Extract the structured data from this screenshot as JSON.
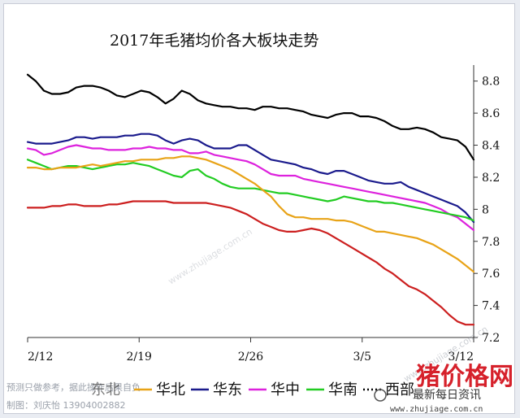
{
  "chart_data": {
    "type": "line",
    "title": "2017年毛猪均价各大板块走势",
    "x_ticks": [
      "2/12",
      "2/19",
      "2/26",
      "3/5",
      "3/12"
    ],
    "y_ticks": [
      "7.2",
      "7.4",
      "7.6",
      "7.8",
      "8",
      "8.2",
      "8.4",
      "8.6",
      "8.8"
    ],
    "ylim": [
      7.2,
      8.9
    ],
    "y_axis_side": "right",
    "legend_position": "bottom",
    "legend_prefix_visible": "东北",
    "series": [
      {
        "name": "西部",
        "color": "#000000",
        "values": [
          8.84,
          8.8,
          8.74,
          8.72,
          8.72,
          8.73,
          8.76,
          8.77,
          8.77,
          8.76,
          8.74,
          8.71,
          8.7,
          8.72,
          8.74,
          8.73,
          8.7,
          8.66,
          8.69,
          8.74,
          8.72,
          8.68,
          8.66,
          8.65,
          8.64,
          8.64,
          8.63,
          8.63,
          8.62,
          8.64,
          8.64,
          8.63,
          8.63,
          8.62,
          8.61,
          8.59,
          8.58,
          8.57,
          8.59,
          8.6,
          8.6,
          8.58,
          8.58,
          8.57,
          8.55,
          8.52,
          8.5,
          8.5,
          8.51,
          8.5,
          8.48,
          8.45,
          8.44,
          8.43,
          8.39,
          8.31
        ]
      },
      {
        "name": "华东",
        "color": "#1a1a8c",
        "values": [
          8.42,
          8.41,
          8.41,
          8.41,
          8.42,
          8.43,
          8.45,
          8.45,
          8.44,
          8.45,
          8.45,
          8.45,
          8.46,
          8.46,
          8.47,
          8.47,
          8.46,
          8.43,
          8.41,
          8.43,
          8.44,
          8.43,
          8.4,
          8.38,
          8.38,
          8.38,
          8.4,
          8.4,
          8.37,
          8.34,
          8.31,
          8.3,
          8.29,
          8.28,
          8.26,
          8.25,
          8.23,
          8.22,
          8.24,
          8.24,
          8.22,
          8.2,
          8.18,
          8.17,
          8.16,
          8.16,
          8.17,
          8.14,
          8.12,
          8.1,
          8.08,
          8.06,
          8.04,
          8.02,
          7.98,
          7.92
        ]
      },
      {
        "name": "华中",
        "color": "#dd22dd",
        "values": [
          8.38,
          8.37,
          8.34,
          8.35,
          8.37,
          8.39,
          8.4,
          8.39,
          8.38,
          8.38,
          8.37,
          8.37,
          8.37,
          8.38,
          8.38,
          8.39,
          8.38,
          8.38,
          8.37,
          8.37,
          8.35,
          8.35,
          8.36,
          8.34,
          8.33,
          8.32,
          8.31,
          8.3,
          8.28,
          8.25,
          8.22,
          8.21,
          8.21,
          8.21,
          8.19,
          8.18,
          8.17,
          8.16,
          8.15,
          8.14,
          8.13,
          8.12,
          8.11,
          8.1,
          8.09,
          8.08,
          8.07,
          8.06,
          8.05,
          8.04,
          8.02,
          8.0,
          7.97,
          7.95,
          7.91,
          7.87
        ]
      },
      {
        "name": "华南",
        "color": "#22cc22",
        "values": [
          8.31,
          8.29,
          8.27,
          8.25,
          8.26,
          8.27,
          8.27,
          8.26,
          8.25,
          8.26,
          8.27,
          8.28,
          8.28,
          8.29,
          8.28,
          8.27,
          8.25,
          8.23,
          8.21,
          8.2,
          8.24,
          8.25,
          8.21,
          8.19,
          8.16,
          8.14,
          8.13,
          8.13,
          8.13,
          8.12,
          8.11,
          8.1,
          8.1,
          8.09,
          8.08,
          8.07,
          8.06,
          8.05,
          8.06,
          8.08,
          8.07,
          8.06,
          8.05,
          8.05,
          8.04,
          8.04,
          8.03,
          8.02,
          8.01,
          8.0,
          7.99,
          7.98,
          7.97,
          7.96,
          7.95,
          7.93
        ]
      },
      {
        "name": "华北",
        "color": "#e8a317",
        "values": [
          8.26,
          8.26,
          8.25,
          8.25,
          8.26,
          8.26,
          8.26,
          8.27,
          8.28,
          8.27,
          8.28,
          8.29,
          8.3,
          8.3,
          8.31,
          8.31,
          8.31,
          8.32,
          8.32,
          8.33,
          8.33,
          8.32,
          8.31,
          8.29,
          8.27,
          8.25,
          8.22,
          8.19,
          8.16,
          8.12,
          8.08,
          8.02,
          7.97,
          7.95,
          7.95,
          7.94,
          7.94,
          7.94,
          7.93,
          7.93,
          7.92,
          7.9,
          7.88,
          7.86,
          7.86,
          7.85,
          7.84,
          7.83,
          7.82,
          7.8,
          7.78,
          7.75,
          7.72,
          7.69,
          7.65,
          7.61
        ]
      },
      {
        "name": "东北",
        "color": "#cc1f1f",
        "values": [
          8.01,
          8.01,
          8.01,
          8.02,
          8.02,
          8.03,
          8.03,
          8.02,
          8.02,
          8.02,
          8.03,
          8.03,
          8.04,
          8.05,
          8.05,
          8.05,
          8.05,
          8.05,
          8.04,
          8.04,
          8.04,
          8.04,
          8.04,
          8.03,
          8.02,
          8.01,
          7.99,
          7.97,
          7.94,
          7.91,
          7.89,
          7.87,
          7.86,
          7.86,
          7.87,
          7.88,
          7.87,
          7.85,
          7.82,
          7.79,
          7.76,
          7.73,
          7.7,
          7.67,
          7.63,
          7.6,
          7.56,
          7.52,
          7.5,
          7.47,
          7.43,
          7.39,
          7.34,
          7.3,
          7.28,
          7.28
        ]
      }
    ],
    "legend": [
      {
        "label": "华北",
        "color": "#e8a317"
      },
      {
        "label": "华东",
        "color": "#1a1a8c"
      },
      {
        "label": "华中",
        "color": "#dd22dd"
      },
      {
        "label": "华南",
        "color": "#22cc22"
      },
      {
        "label": "西部",
        "color": "#000000",
        "dashed": true
      }
    ]
  },
  "watermark": {
    "disclaimer": "预测只做参考，据此操作后果自负",
    "author": "制图：刘庆怡    13904002882",
    "logo": "猪价格网",
    "tagline": "最新每日资讯",
    "url": "www.zhujiage.com.cn",
    "diagonal": "www.zhujiage.com.cn"
  }
}
